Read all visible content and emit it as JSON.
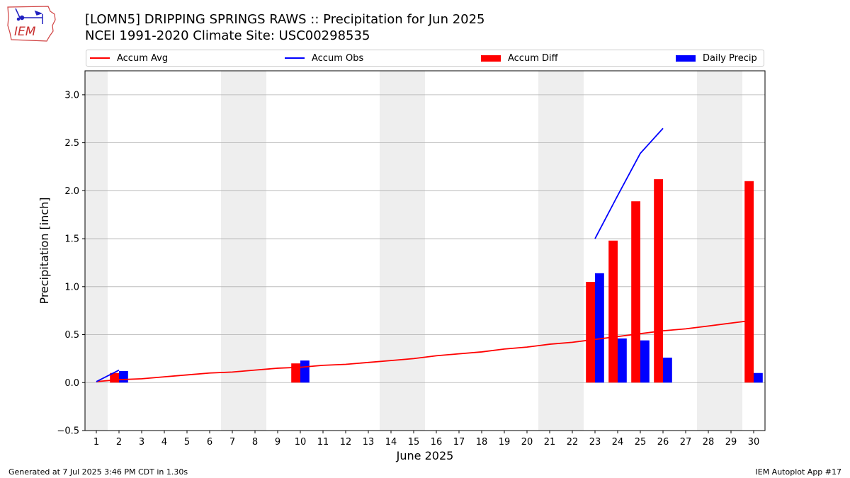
{
  "header": {
    "logo_text": "IEM",
    "title_line1": "[LOMN5] DRIPPING SPRINGS RAWS :: Precipitation for Jun 2025",
    "title_line2": "NCEI 1991-2020 Climate Site: USC00298535"
  },
  "legend": {
    "accum_avg": "Accum Avg",
    "accum_obs": "Accum Obs",
    "accum_diff": "Accum Diff",
    "daily_precip": "Daily Precip"
  },
  "colors": {
    "accum_avg": "#ff0000",
    "accum_obs": "#0000ff",
    "accum_diff": "#ff0000",
    "daily_precip": "#0000ff",
    "weekend_band": "#eeeeee",
    "grid": "#b0b0b0"
  },
  "chart_data": {
    "type": "bar",
    "xlabel": "June 2025",
    "ylabel": "Precipitation [inch]",
    "ylim": [
      -0.5,
      3.25
    ],
    "yticks": [
      -0.5,
      0.0,
      0.5,
      1.0,
      1.5,
      2.0,
      2.5,
      3.0
    ],
    "ytick_labels": [
      "−0.5",
      "0.0",
      "0.5",
      "1.0",
      "1.5",
      "2.0",
      "2.5",
      "3.0"
    ],
    "grid": "horizontal",
    "legend_position": "top",
    "days": [
      1,
      2,
      3,
      4,
      5,
      6,
      7,
      8,
      9,
      10,
      11,
      12,
      13,
      14,
      15,
      16,
      17,
      18,
      19,
      20,
      21,
      22,
      23,
      24,
      25,
      26,
      27,
      28,
      29,
      30
    ],
    "weekend_bands": [
      [
        1,
        1
      ],
      [
        7,
        8
      ],
      [
        14,
        15
      ],
      [
        21,
        22
      ],
      [
        28,
        29
      ]
    ],
    "series": [
      {
        "name": "Accum Avg",
        "kind": "line",
        "x": [
          1,
          2,
          3,
          4,
          5,
          6,
          7,
          8,
          9,
          10,
          11,
          12,
          13,
          14,
          15,
          16,
          17,
          18,
          19,
          20,
          21,
          22,
          23,
          24,
          25,
          26,
          27,
          28,
          29,
          30
        ],
        "values": [
          0.01,
          0.03,
          0.04,
          0.06,
          0.08,
          0.1,
          0.11,
          0.13,
          0.15,
          0.16,
          0.18,
          0.19,
          0.21,
          0.23,
          0.25,
          0.28,
          0.3,
          0.32,
          0.35,
          0.37,
          0.4,
          0.42,
          0.45,
          0.48,
          0.51,
          0.54,
          0.56,
          0.59,
          0.62,
          0.65
        ]
      },
      {
        "name": "Accum Obs",
        "kind": "line",
        "segments": [
          {
            "x": [
              1,
              2
            ],
            "values": [
              0.01,
              0.13
            ]
          },
          {
            "x": [
              23,
              24,
              25,
              26
            ],
            "values": [
              1.5,
              1.95,
              2.39,
              2.65
            ]
          }
        ]
      },
      {
        "name": "Accum Diff",
        "kind": "bar",
        "x": [
          2,
          10,
          23,
          24,
          25,
          26,
          30
        ],
        "values": [
          0.1,
          0.2,
          1.05,
          1.48,
          1.89,
          2.12,
          2.1
        ]
      },
      {
        "name": "Daily Precip",
        "kind": "bar",
        "x": [
          2,
          10,
          23,
          24,
          25,
          26,
          30
        ],
        "values": [
          0.12,
          0.23,
          1.14,
          0.46,
          0.44,
          0.26,
          0.1
        ]
      }
    ]
  },
  "footer": {
    "generated": "Generated at 7 Jul 2025 3:46 PM CDT in 1.30s",
    "app": "IEM Autoplot App #17"
  }
}
